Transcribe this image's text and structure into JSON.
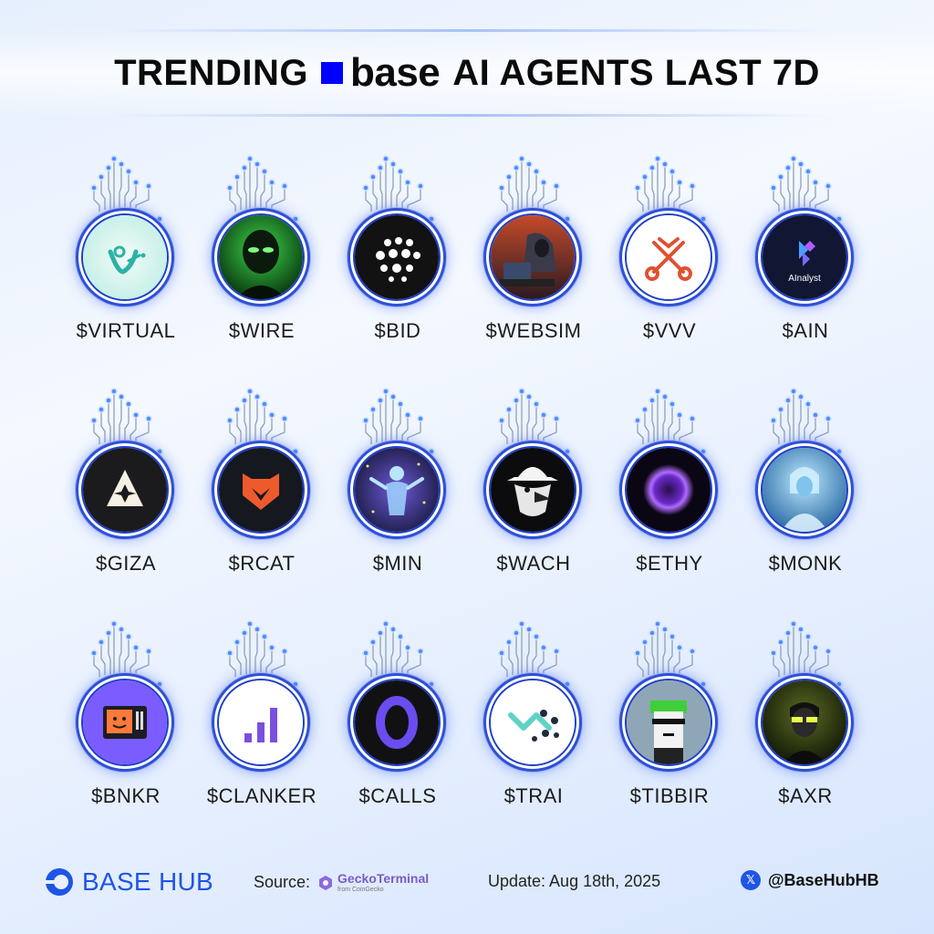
{
  "header": {
    "title_left": "TRENDING",
    "brand_word": "base",
    "title_right": "AI AGENTS LAST 7D"
  },
  "agents": [
    {
      "ticker": "$VIRTUAL",
      "icon": "virtual-logo-icon"
    },
    {
      "ticker": "$WIRE",
      "icon": "green-alien-icon"
    },
    {
      "ticker": "$BID",
      "icon": "dots-logo-icon"
    },
    {
      "ticker": "$WEBSIM",
      "icon": "hooded-hacker-icon"
    },
    {
      "ticker": "$VVV",
      "icon": "crossed-keys-icon"
    },
    {
      "ticker": "$AIN",
      "icon": "ainalyst-logo-icon",
      "logo_text": "AInalyst"
    },
    {
      "ticker": "$GIZA",
      "icon": "giza-star-icon"
    },
    {
      "ticker": "$RCAT",
      "icon": "fox-logo-icon"
    },
    {
      "ticker": "$MIN",
      "icon": "cosmic-figure-icon"
    },
    {
      "ticker": "$WACH",
      "icon": "hat-bird-icon"
    },
    {
      "ticker": "$ETHY",
      "icon": "purple-orb-icon"
    },
    {
      "ticker": "$MONK",
      "icon": "blue-monk-icon"
    },
    {
      "ticker": "$BNKR",
      "icon": "smiley-terminal-icon"
    },
    {
      "ticker": "$CLANKER",
      "icon": "signal-bars-icon"
    },
    {
      "ticker": "$CALLS",
      "icon": "purple-o-icon"
    },
    {
      "ticker": "$TRAI",
      "icon": "dot-wave-icon"
    },
    {
      "ticker": "$TIBBIR",
      "icon": "pixel-punk-icon"
    },
    {
      "ticker": "$AXR",
      "icon": "glowing-glasses-icon"
    }
  ],
  "footer": {
    "brand": "BASE HUB",
    "source_label": "Source:",
    "source_name": "GeckoTerminal",
    "source_sub": "from CoinGecko",
    "update": "Update: Aug 18th, 2025",
    "social_icon": "x-logo-icon",
    "handle": "@BaseHubHB"
  },
  "colors": {
    "base_blue": "#0000ff",
    "ring_blue": "#2e50d8",
    "brand_blue": "#1f54e6",
    "gecko_purple": "#7a5cc7"
  }
}
